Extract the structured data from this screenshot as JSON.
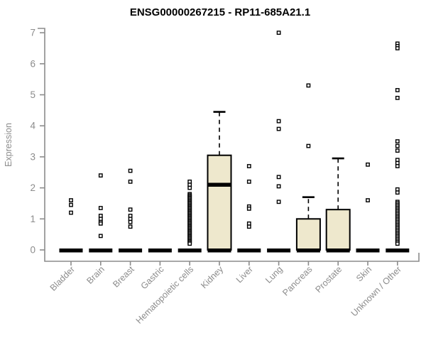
{
  "chart_data": {
    "type": "boxplot",
    "title": "ENSG00000267215 - RP11-685A21.1",
    "ylabel": "Expression",
    "xlabel": "",
    "ylim": [
      0,
      7
    ],
    "yticks": [
      0,
      1,
      2,
      3,
      4,
      5,
      6,
      7
    ],
    "grid": false,
    "legend": false,
    "colors": {
      "box_fill": "#EEE8CD",
      "box_line": "#000000",
      "outlier_fill": "#ffffff",
      "outlier_line": "#000000",
      "axis": "#8c8c8c",
      "title": "#000000"
    },
    "categories": [
      "Bladder",
      "Brain",
      "Breast",
      "Gastric",
      "Hematopoietic cells",
      "Kidney",
      "Liver",
      "Lung",
      "Pancreas",
      "Prostate",
      "Skin",
      "Unknown / Other"
    ],
    "boxes": [
      {
        "category": "Bladder",
        "q1": 0,
        "median": 0,
        "q3": 0,
        "whisker_low": 0,
        "whisker_high": 0,
        "outliers": [
          1.6,
          1.45,
          1.2
        ]
      },
      {
        "category": "Brain",
        "q1": 0,
        "median": 0,
        "q3": 0,
        "whisker_low": 0,
        "whisker_high": 0,
        "outliers": [
          2.4,
          1.35,
          1.1,
          1.0,
          0.9,
          0.85,
          0.45
        ]
      },
      {
        "category": "Breast",
        "q1": 0,
        "median": 0,
        "q3": 0,
        "whisker_low": 0,
        "whisker_high": 0,
        "outliers": [
          2.55,
          2.2,
          1.3,
          1.1,
          1.0,
          0.9,
          0.75
        ]
      },
      {
        "category": "Gastric",
        "q1": 0,
        "median": 0,
        "q3": 0,
        "whisker_low": 0,
        "whisker_high": 0,
        "outliers": []
      },
      {
        "category": "Hematopoietic cells",
        "q1": 0,
        "median": 0,
        "q3": 0,
        "whisker_low": 0,
        "whisker_high": 0,
        "outliers": [
          2.2,
          2.1,
          2.0,
          1.8,
          1.76,
          1.72,
          1.68,
          1.64,
          1.6,
          1.56,
          1.52,
          1.48,
          1.44,
          1.4,
          1.36,
          1.32,
          1.28,
          1.24,
          1.2,
          1.16,
          1.12,
          1.08,
          1.04,
          1.0,
          0.96,
          0.92,
          0.88,
          0.84,
          0.8,
          0.76,
          0.72,
          0.68,
          0.64,
          0.6,
          0.56,
          0.52,
          0.48,
          0.44,
          0.4,
          0.36,
          0.32,
          0.28,
          0.24,
          0.2
        ]
      },
      {
        "category": "Kidney",
        "q1": 0,
        "median": 2.1,
        "q3": 3.05,
        "whisker_low": 0,
        "whisker_high": 4.45,
        "outliers": []
      },
      {
        "category": "Liver",
        "q1": 0,
        "median": 0,
        "q3": 0,
        "whisker_low": 0,
        "whisker_high": 0,
        "outliers": [
          2.7,
          2.2,
          1.4,
          1.33,
          0.85,
          0.75
        ]
      },
      {
        "category": "Lung",
        "q1": 0,
        "median": 0,
        "q3": 0,
        "whisker_low": 0,
        "whisker_high": 0,
        "outliers": [
          7.0,
          4.15,
          3.9,
          2.35,
          2.05,
          1.55
        ]
      },
      {
        "category": "Pancreas",
        "q1": 0,
        "median": 0,
        "q3": 1.0,
        "whisker_low": 0,
        "whisker_high": 1.7,
        "outliers": [
          5.3,
          3.35
        ]
      },
      {
        "category": "Prostate",
        "q1": 0,
        "median": 0,
        "q3": 1.3,
        "whisker_low": 0,
        "whisker_high": 2.95,
        "outliers": []
      },
      {
        "category": "Skin",
        "q1": 0,
        "median": 0,
        "q3": 0,
        "whisker_low": 0,
        "whisker_high": 0,
        "outliers": [
          2.75,
          1.6
        ]
      },
      {
        "category": "Unknown / Other",
        "q1": 0,
        "median": 0,
        "q3": 0,
        "whisker_low": 0,
        "whisker_high": 0,
        "outliers": [
          6.65,
          6.57,
          6.5,
          5.15,
          4.9,
          3.5,
          3.35,
          3.2,
          2.9,
          2.8,
          2.7,
          1.95,
          1.85,
          1.55,
          1.5,
          1.45,
          1.4,
          1.35,
          1.3,
          1.25,
          1.2,
          1.15,
          1.1,
          1.05,
          1.0,
          0.95,
          0.9,
          0.85,
          0.8,
          0.75,
          0.7,
          0.65,
          0.6,
          0.55,
          0.5,
          0.45,
          0.4,
          0.35,
          0.3,
          0.25,
          0.2
        ]
      }
    ]
  }
}
